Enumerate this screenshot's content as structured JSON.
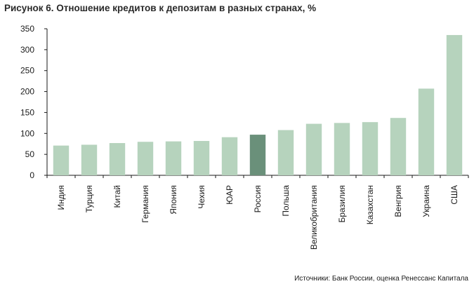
{
  "chart_data": {
    "type": "bar",
    "title": "Рисунок 6. Отношение кредитов к депозитам в разных странах, %",
    "categories": [
      "Индия",
      "Турция",
      "Китай",
      "Германия",
      "Япония",
      "Чехия",
      "ЮАР",
      "Россия",
      "Польша",
      "Великобритания",
      "Бразилия",
      "Казахстан",
      "Венгрия",
      "Украина",
      "США"
    ],
    "values": [
      71,
      73,
      77,
      80,
      81,
      82,
      91,
      97,
      108,
      123,
      125,
      127,
      137,
      207,
      335
    ],
    "highlight": "Россия",
    "ylim": [
      0,
      350
    ],
    "yticks": [
      0,
      50,
      100,
      150,
      200,
      250,
      300,
      350
    ],
    "xlabel": "",
    "ylabel": "",
    "grid": false,
    "colors": {
      "bar": "#b6d3bd",
      "highlight": "#6a907a"
    }
  },
  "source": "Источники: Банк России, оценка Ренессанс Капитала"
}
